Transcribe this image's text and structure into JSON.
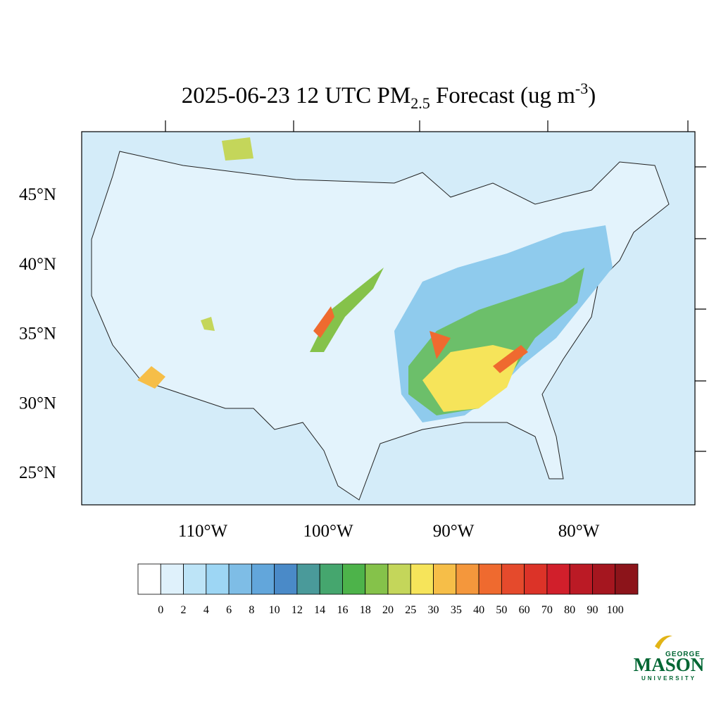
{
  "title": {
    "main": "2025-06-23 12 UTC PM",
    "sub": "2.5",
    "rest": " Forecast (ug m",
    "sup": "-3",
    "end": ")"
  },
  "lat_labels": [
    {
      "value": 45,
      "label": "45°N"
    },
    {
      "value": 40,
      "label": "40°N"
    },
    {
      "value": 35,
      "label": "35°N"
    },
    {
      "value": 30,
      "label": "30°N"
    },
    {
      "value": 25,
      "label": "25°N"
    }
  ],
  "lon_labels": [
    {
      "value": -110,
      "label": "110°W"
    },
    {
      "value": -100,
      "label": "100°W"
    },
    {
      "value": -90,
      "label": "90°W"
    },
    {
      "value": -80,
      "label": "80°W"
    }
  ],
  "colorbar": {
    "levels": [
      0,
      2,
      4,
      6,
      8,
      10,
      12,
      14,
      16,
      18,
      20,
      25,
      30,
      35,
      40,
      50,
      60,
      70,
      80,
      90,
      100
    ],
    "colors": [
      "#ffffff",
      "#dff1fb",
      "#bde4f7",
      "#9dd6f4",
      "#7ebde6",
      "#62a6db",
      "#4a8ac8",
      "#4a9a9a",
      "#45a66e",
      "#4db34a",
      "#85c24a",
      "#c4d65a",
      "#f6e45a",
      "#f6be48",
      "#f4973c",
      "#ef6a2f",
      "#e54a2c",
      "#dc3328",
      "#d11f2b",
      "#bb1a25",
      "#a5161f",
      "#8c141a"
    ]
  },
  "logo": {
    "top": "GEORGE",
    "main": "MASON",
    "bottom": "UNIVERSITY"
  }
}
